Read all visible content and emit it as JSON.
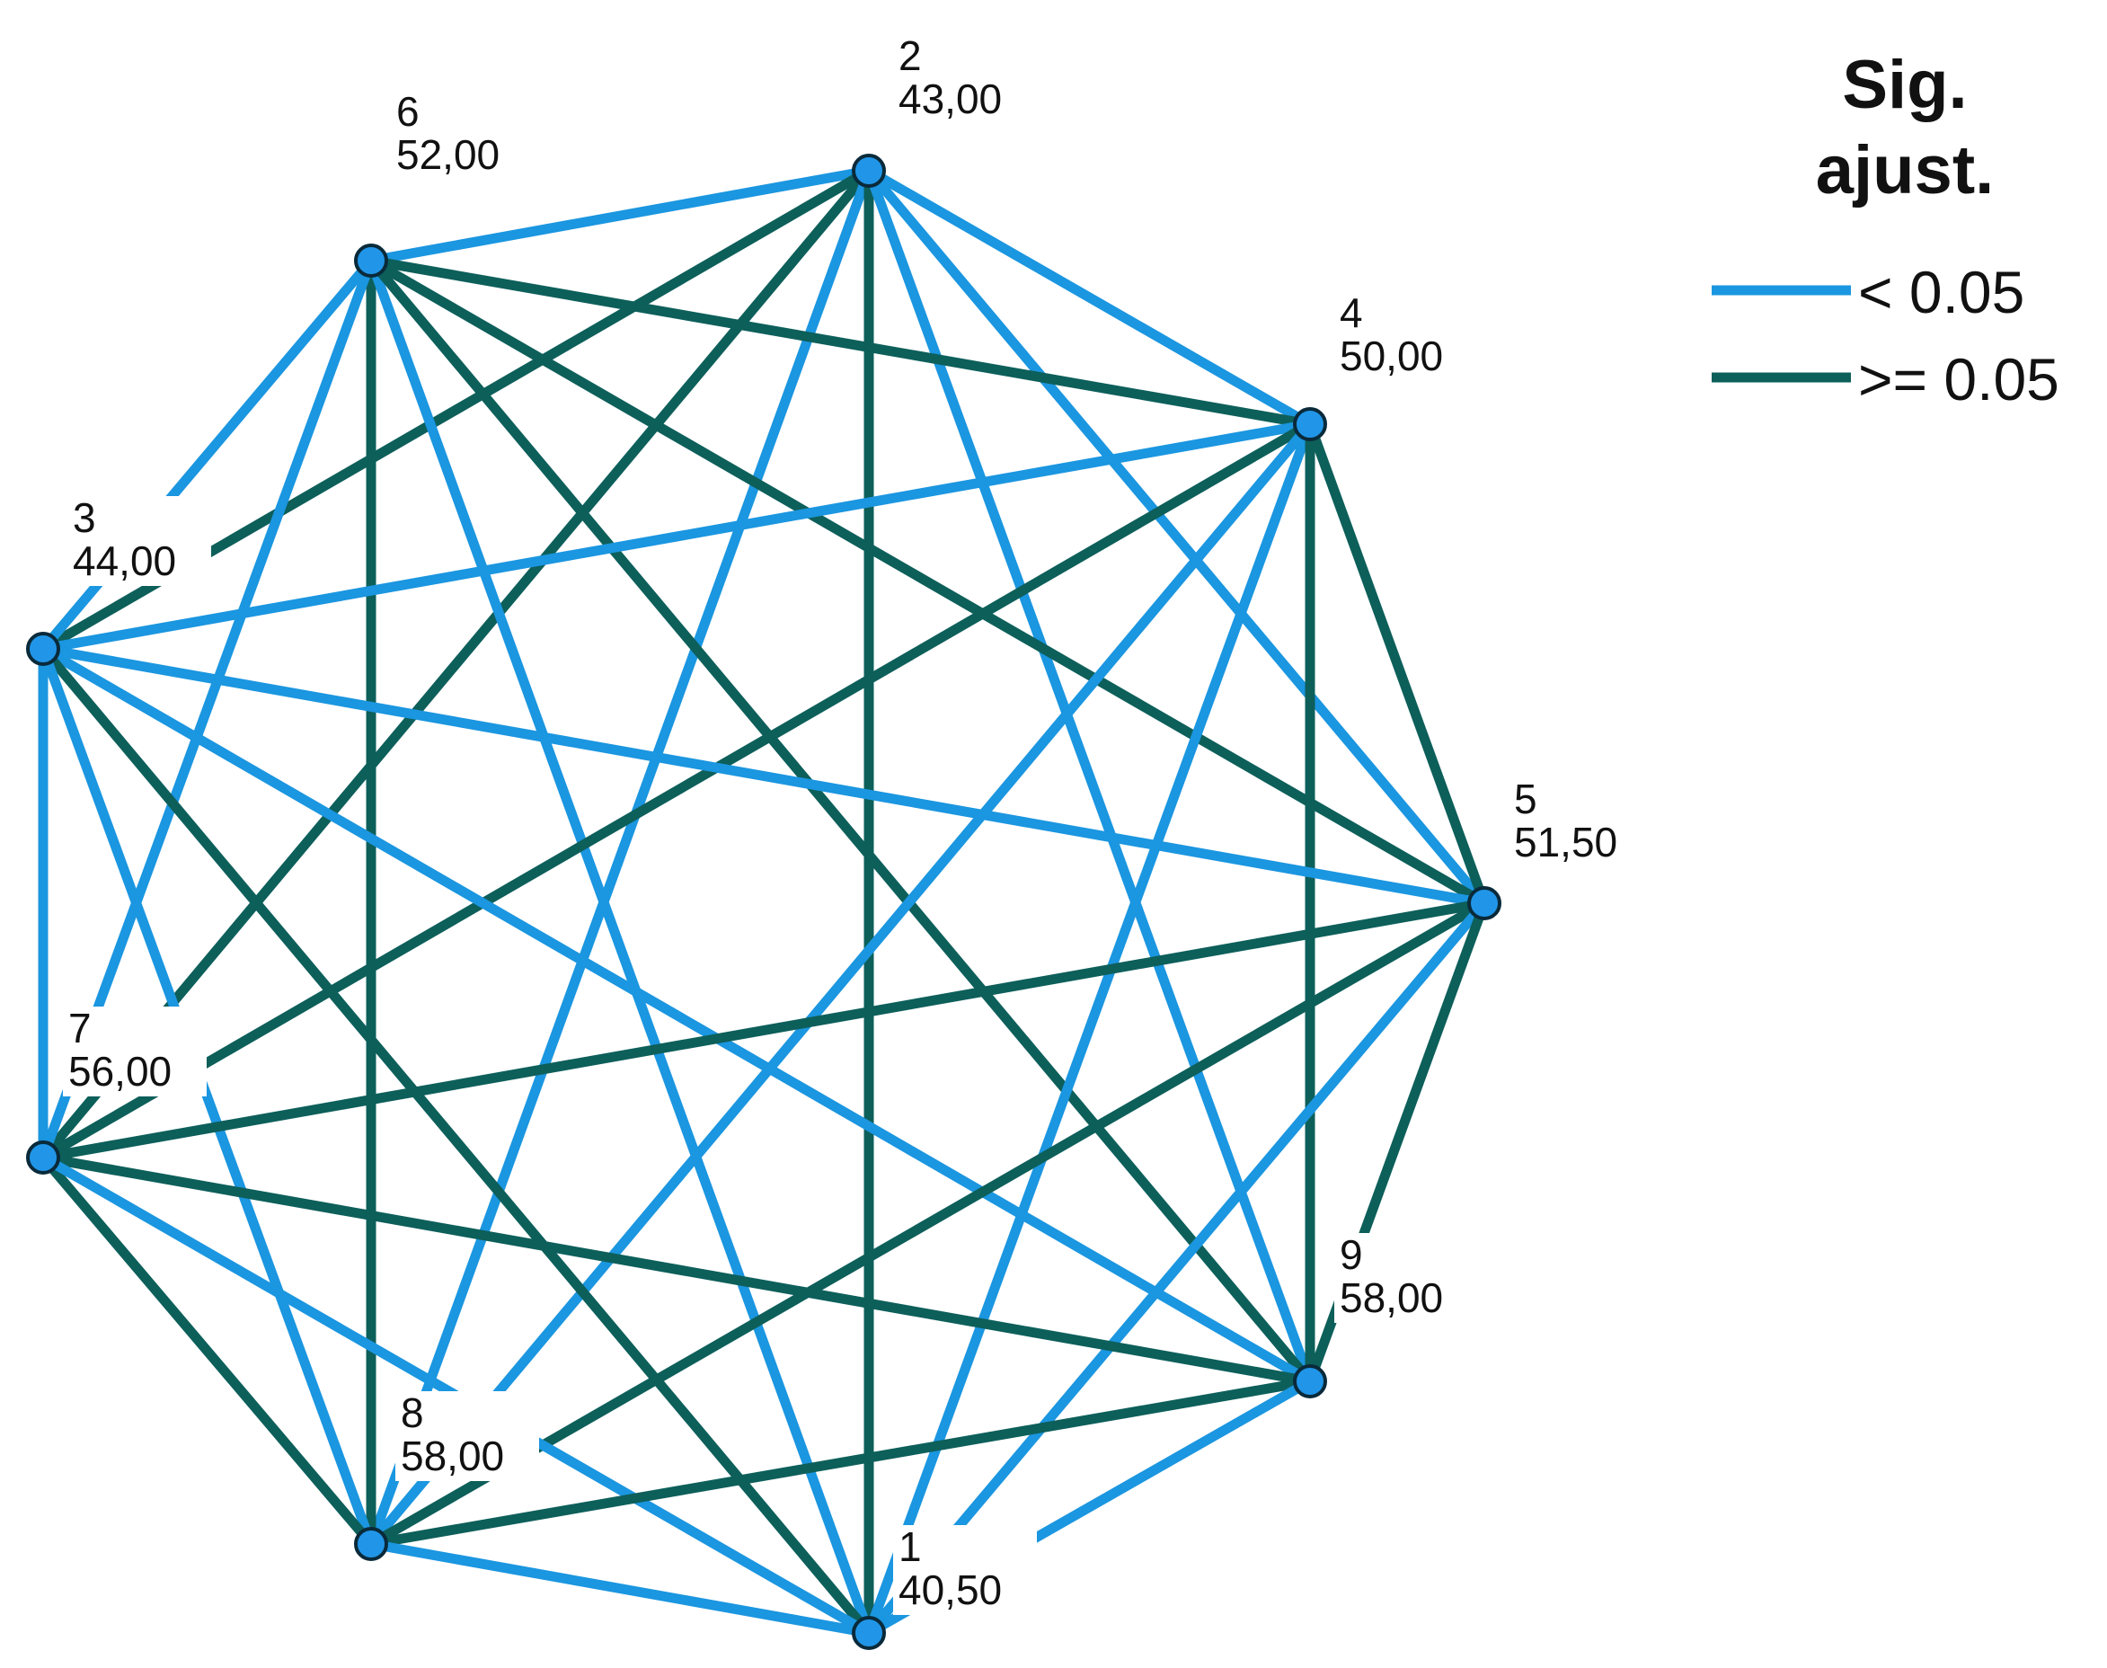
{
  "legend": {
    "title_line1": "Sig.",
    "title_line2": "ajust.",
    "items": [
      {
        "label": "< 0.05",
        "color": "#1b96e0"
      },
      {
        "label": ">= 0.05",
        "color": "#0d5f5a"
      }
    ]
  },
  "nodes": [
    {
      "id": "1",
      "value": "40,50"
    },
    {
      "id": "2",
      "value": "43,00"
    },
    {
      "id": "3",
      "value": "44,00"
    },
    {
      "id": "4",
      "value": "50,00"
    },
    {
      "id": "5",
      "value": "51,50"
    },
    {
      "id": "6",
      "value": "52,00"
    },
    {
      "id": "7",
      "value": "56,00"
    },
    {
      "id": "8",
      "value": "58,00"
    },
    {
      "id": "9",
      "value": "58,00"
    }
  ],
  "edges": [
    {
      "a": "2",
      "b": "6",
      "sig": "<0.05"
    },
    {
      "a": "2",
      "b": "4",
      "sig": "<0.05"
    },
    {
      "a": "2",
      "b": "3",
      "sig": ">=0.05"
    },
    {
      "a": "2",
      "b": "7",
      "sig": ">=0.05"
    },
    {
      "a": "2",
      "b": "8",
      "sig": "<0.05"
    },
    {
      "a": "2",
      "b": "1",
      "sig": ">=0.05"
    },
    {
      "a": "2",
      "b": "9",
      "sig": "<0.05"
    },
    {
      "a": "2",
      "b": "5",
      "sig": "<0.05"
    },
    {
      "a": "6",
      "b": "3",
      "sig": "<0.05"
    },
    {
      "a": "6",
      "b": "4",
      "sig": ">=0.05"
    },
    {
      "a": "6",
      "b": "8",
      "sig": ">=0.05"
    },
    {
      "a": "6",
      "b": "1",
      "sig": "<0.05"
    },
    {
      "a": "6",
      "b": "9",
      "sig": ">=0.05"
    },
    {
      "a": "6",
      "b": "5",
      "sig": ">=0.05"
    },
    {
      "a": "6",
      "b": "7",
      "sig": "<0.05"
    },
    {
      "a": "4",
      "b": "3",
      "sig": "<0.05"
    },
    {
      "a": "4",
      "b": "7",
      "sig": ">=0.05"
    },
    {
      "a": "4",
      "b": "8",
      "sig": "<0.05"
    },
    {
      "a": "4",
      "b": "1",
      "sig": "<0.05"
    },
    {
      "a": "4",
      "b": "5",
      "sig": ">=0.05"
    },
    {
      "a": "4",
      "b": "9",
      "sig": ">=0.05"
    },
    {
      "a": "3",
      "b": "5",
      "sig": "<0.05"
    },
    {
      "a": "3",
      "b": "9",
      "sig": "<0.05"
    },
    {
      "a": "3",
      "b": "1",
      "sig": ">=0.05"
    },
    {
      "a": "3",
      "b": "8",
      "sig": "<0.05"
    },
    {
      "a": "3",
      "b": "7",
      "sig": "<0.05"
    },
    {
      "a": "5",
      "b": "7",
      "sig": ">=0.05"
    },
    {
      "a": "5",
      "b": "8",
      "sig": ">=0.05"
    },
    {
      "a": "5",
      "b": "1",
      "sig": "<0.05"
    },
    {
      "a": "5",
      "b": "9",
      "sig": ">=0.05"
    },
    {
      "a": "7",
      "b": "9",
      "sig": ">=0.05"
    },
    {
      "a": "7",
      "b": "8",
      "sig": ">=0.05"
    },
    {
      "a": "7",
      "b": "1",
      "sig": "<0.05"
    },
    {
      "a": "8",
      "b": "9",
      "sig": ">=0.05"
    },
    {
      "a": "8",
      "b": "1",
      "sig": "<0.05"
    },
    {
      "a": "9",
      "b": "1",
      "sig": "<0.05"
    }
  ]
}
